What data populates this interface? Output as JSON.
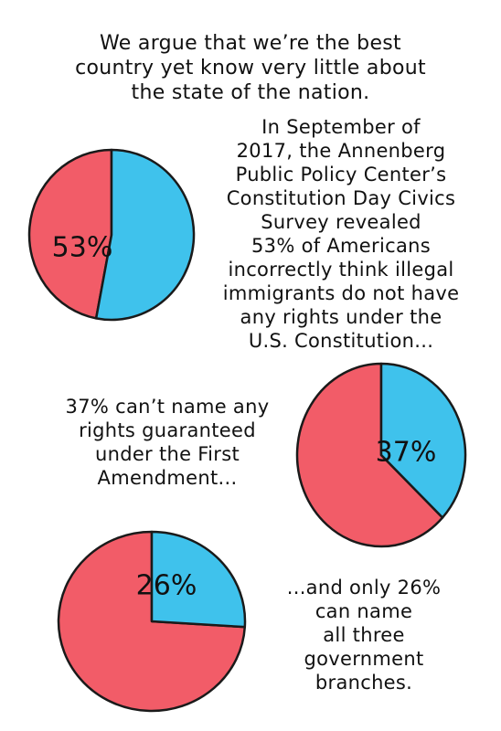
{
  "headline": "We argue that we’re the best\ncountry yet know very little about\nthe state of the nation.",
  "colors": {
    "red": "#f25c68",
    "blue": "#3fc2ec",
    "outline": "#1a1a1a"
  },
  "chart_data": [
    {
      "type": "pie",
      "slices": [
        {
          "value": 53,
          "color": "#3fc2ec"
        },
        {
          "value": 47,
          "color": "#f25c68"
        }
      ],
      "data_label": "53%",
      "caption": "In September of\n2017, the Annenberg\nPublic Policy Center’s\nConstitution Day Civics\nSurvey revealed\n53% of Americans\nincorrectly think illegal\nimmigrants do not have\nany rights under the\nU.S. Constitution..."
    },
    {
      "type": "pie",
      "slices": [
        {
          "value": 37,
          "color": "#3fc2ec"
        },
        {
          "value": 63,
          "color": "#f25c68"
        }
      ],
      "data_label": "37%",
      "caption": "37% can’t name any\nrights guaranteed\nunder the First\nAmendment..."
    },
    {
      "type": "pie",
      "slices": [
        {
          "value": 26,
          "color": "#3fc2ec"
        },
        {
          "value": 74,
          "color": "#f25c68"
        }
      ],
      "data_label": "26%",
      "caption": "...and only 26%\ncan name\nall three\ngovernment\nbranches."
    }
  ]
}
